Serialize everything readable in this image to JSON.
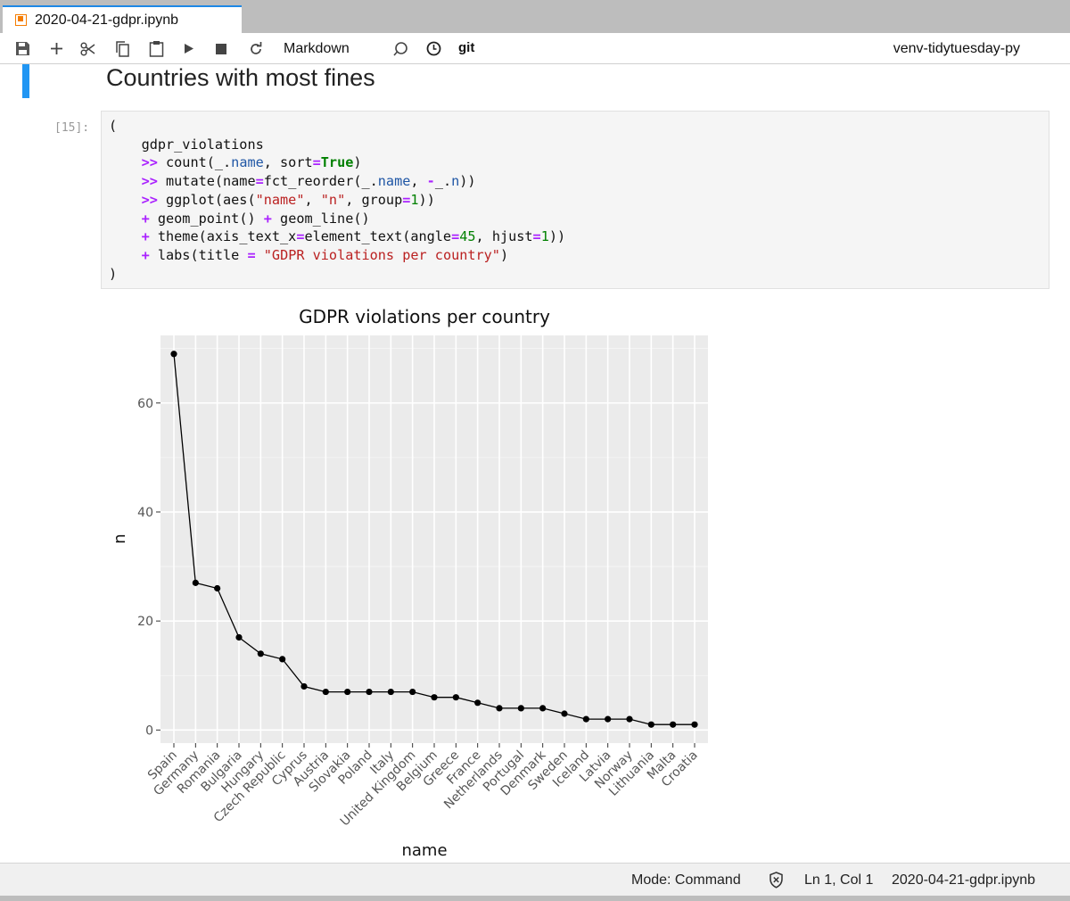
{
  "tab": {
    "title": "2020-04-21-gdpr.ipynb",
    "icon": "notebook-icon"
  },
  "toolbar": {
    "buttons": [
      "save-icon",
      "add-icon",
      "cut-icon",
      "copy-icon",
      "paste-icon",
      "run-icon",
      "stop-icon",
      "restart-icon"
    ],
    "cell_type": "Markdown",
    "git_label": "git",
    "kernel": "venv-tidytuesday-py"
  },
  "notebook": {
    "heading": "Countries with most fines",
    "prompt": "[15]:",
    "code_lines": [
      "(",
      "    gdpr_violations",
      "    >> count(_.name, sort=True)",
      "    >> mutate(name=fct_reorder(_.name, -_.n))",
      "    >> ggplot(aes(\"name\", \"n\", group=1))",
      "    + geom_point() + geom_line()",
      "    + theme(axis_text_x=element_text(angle=45, hjust=1))",
      "    + labs(title = \"GDPR violations per country\")",
      ")"
    ]
  },
  "chart_data": {
    "type": "line",
    "title": "GDPR violations per country",
    "xlabel": "name",
    "ylabel": "n",
    "categories": [
      "Spain",
      "Germany",
      "Romania",
      "Bulgaria",
      "Hungary",
      "Czech Republic",
      "Cyprus",
      "Austria",
      "Slovakia",
      "Poland",
      "Italy",
      "United Kingdom",
      "Belgium",
      "Greece",
      "France",
      "Netherlands",
      "Portugal",
      "Denmark",
      "Sweden",
      "Iceland",
      "Latvia",
      "Norway",
      "Lithuania",
      "Malta",
      "Croatia"
    ],
    "values": [
      69,
      27,
      26,
      17,
      14,
      13,
      8,
      7,
      7,
      7,
      7,
      7,
      6,
      6,
      5,
      4,
      4,
      4,
      3,
      2,
      2,
      2,
      1,
      1,
      1
    ],
    "ylim": [
      -2.4,
      72.4
    ],
    "yticks": [
      0,
      20,
      40,
      60
    ],
    "markers": true,
    "grid": true,
    "panel_background": "#ebebeb",
    "line_color": "#000000"
  },
  "status": {
    "mode": "Mode: Command",
    "position": "Ln 1, Col 1",
    "filename": "2020-04-21-gdpr.ipynb"
  }
}
